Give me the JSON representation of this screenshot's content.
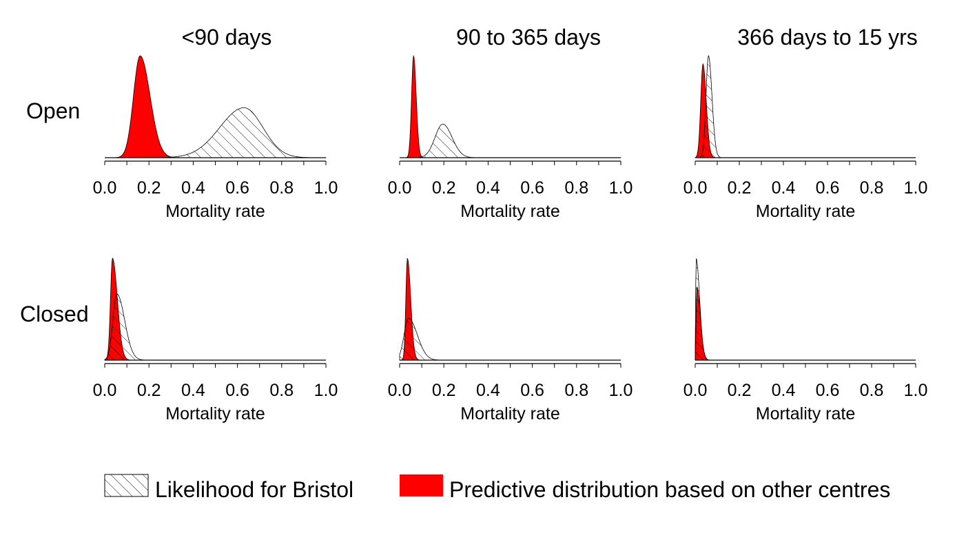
{
  "chart_data": {
    "type": "area",
    "columns": [
      "<90 days",
      "90 to 365 days",
      "366 days to 15 yrs"
    ],
    "rows": [
      "Open",
      "Closed"
    ],
    "xlabel": "Mortality rate",
    "xlim": [
      0.0,
      1.0
    ],
    "xticks": [
      "0.0",
      "0.2",
      "0.4",
      "0.6",
      "0.8",
      "1.0"
    ],
    "legend": {
      "position": "bottom",
      "likelihood": "Likelihood for Bristol",
      "predictive": "Predictive distribution based on other centres"
    },
    "colors": {
      "predictive": "#ff0000",
      "likelihood_fill": "#ffffff",
      "line": "#000000"
    },
    "panels": [
      {
        "row": "Open",
        "column": "<90 days",
        "predictive": {
          "mode": 0.16,
          "sd_left": 0.03,
          "sd_right": 0.045,
          "peak": 1.0
        },
        "likelihood": {
          "mode": 0.63,
          "sd_left": 0.11,
          "sd_right": 0.085,
          "peak": 0.49
        }
      },
      {
        "row": "Open",
        "column": "90 to 365 days",
        "predictive": {
          "mode": 0.063,
          "sd_left": 0.009,
          "sd_right": 0.012,
          "peak": 1.0
        },
        "likelihood": {
          "mode": 0.195,
          "sd_left": 0.035,
          "sd_right": 0.042,
          "peak": 0.33
        }
      },
      {
        "row": "Open",
        "column": "366 days to 15 yrs",
        "predictive": {
          "mode": 0.035,
          "sd_left": 0.01,
          "sd_right": 0.015,
          "peak": 0.92
        },
        "likelihood": {
          "mode": 0.06,
          "sd_left": 0.011,
          "sd_right": 0.016,
          "peak": 1.0
        }
      },
      {
        "row": "Closed",
        "column": "<90 days",
        "predictive": {
          "mode": 0.035,
          "sd_left": 0.009,
          "sd_right": 0.022,
          "peak": 1.0
        },
        "likelihood": {
          "mode": 0.055,
          "sd_left": 0.018,
          "sd_right": 0.035,
          "peak": 0.65
        }
      },
      {
        "row": "Closed",
        "column": "90 to 365 days",
        "predictive": {
          "mode": 0.035,
          "sd_left": 0.007,
          "sd_right": 0.015,
          "peak": 1.0
        },
        "likelihood": {
          "mode": 0.04,
          "sd_left": 0.02,
          "sd_right": 0.04,
          "peak": 0.41
        }
      },
      {
        "row": "Closed",
        "column": "366 days to 15 yrs",
        "predictive": {
          "mode": 0.007,
          "sd_left": 0.003,
          "sd_right": 0.016,
          "peak": 0.72
        },
        "likelihood": {
          "mode": 0.004,
          "sd_left": 0.002,
          "sd_right": 0.016,
          "peak": 1.0
        }
      }
    ]
  }
}
